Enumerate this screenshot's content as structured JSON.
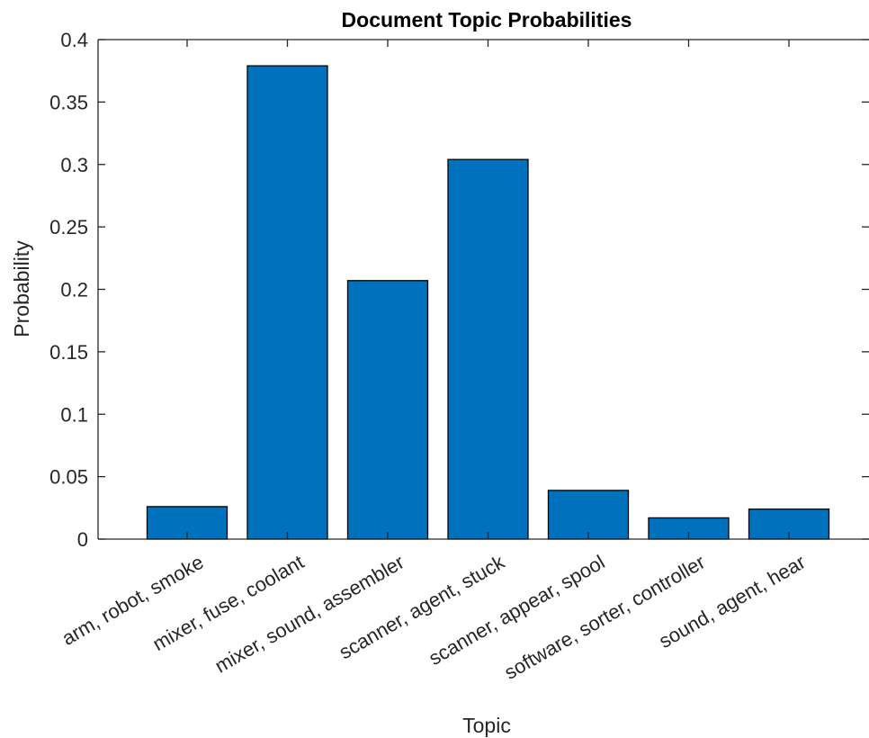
{
  "chart_data": {
    "type": "bar",
    "title": "Document Topic Probabilities",
    "xlabel": "Topic",
    "ylabel": "Probability",
    "categories": [
      "arm, robot, smoke",
      "mixer, fuse, coolant",
      "mixer, sound, assembler",
      "scanner, agent, stuck",
      "scanner, appear, spool",
      "software, sorter, controller",
      "sound, agent, hear"
    ],
    "values": [
      0.026,
      0.379,
      0.207,
      0.304,
      0.039,
      0.017,
      0.024
    ],
    "ylim": [
      0,
      0.4
    ],
    "yticks": [
      0,
      0.05,
      0.1,
      0.15,
      0.2,
      0.25,
      0.3,
      0.35,
      0.4
    ],
    "ytick_labels": [
      "0",
      "0.05",
      "0.1",
      "0.15",
      "0.2",
      "0.25",
      "0.3",
      "0.35",
      "0.4"
    ],
    "grid": false,
    "bar_color": "#0072BD",
    "edge_color": "#000000"
  }
}
